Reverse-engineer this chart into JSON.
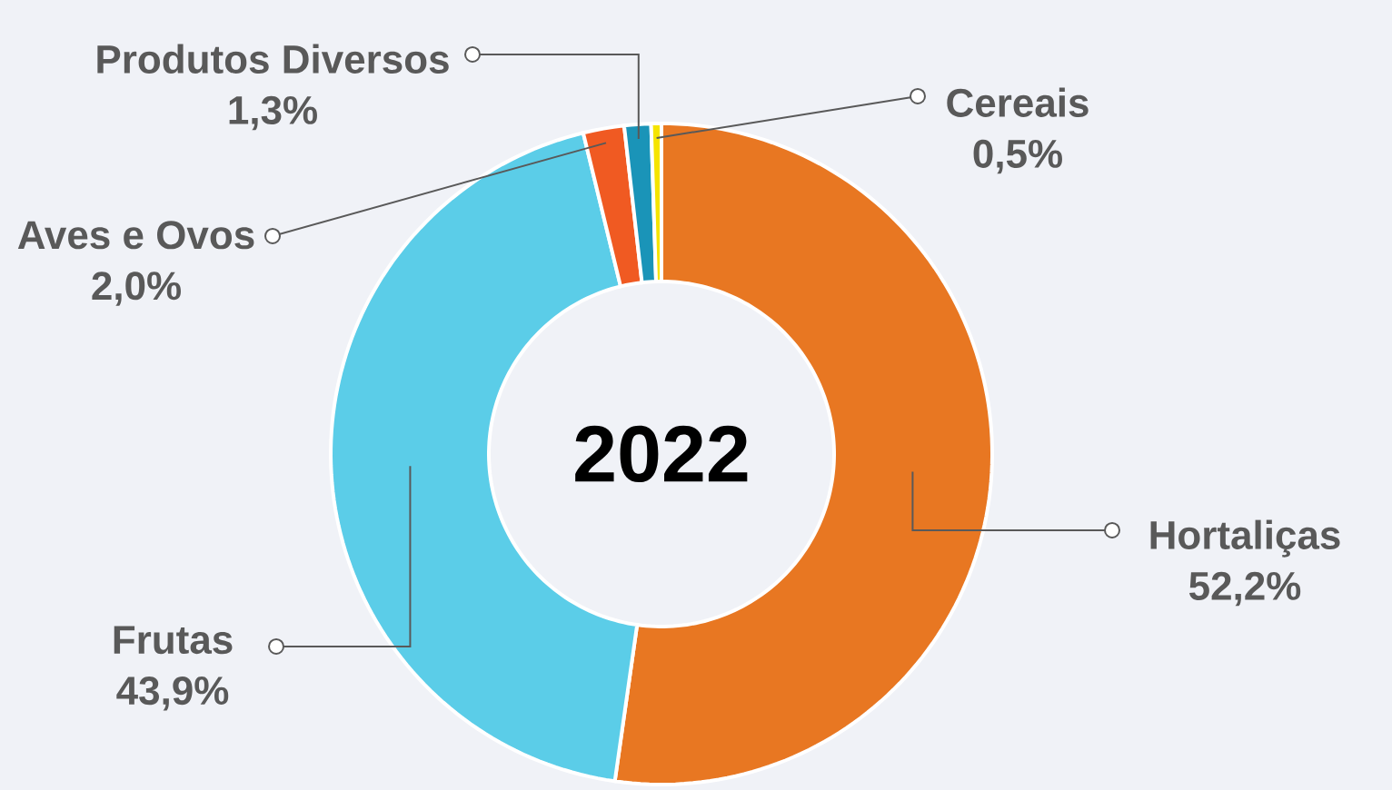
{
  "chart_data": {
    "type": "donut",
    "title": "2022",
    "categories": [
      "Hortaliças",
      "Frutas",
      "Aves e Ovos",
      "Produtos Diversos",
      "Cereais"
    ],
    "values": [
      52.2,
      43.9,
      2.0,
      1.3,
      0.5
    ],
    "colors": [
      "#e87722",
      "#5bcde8",
      "#f05a22",
      "#1a94b8",
      "#f5e400"
    ],
    "value_labels": [
      "52,2%",
      "43,9%",
      "2,0%",
      "1,3%",
      "0,5%"
    ]
  }
}
